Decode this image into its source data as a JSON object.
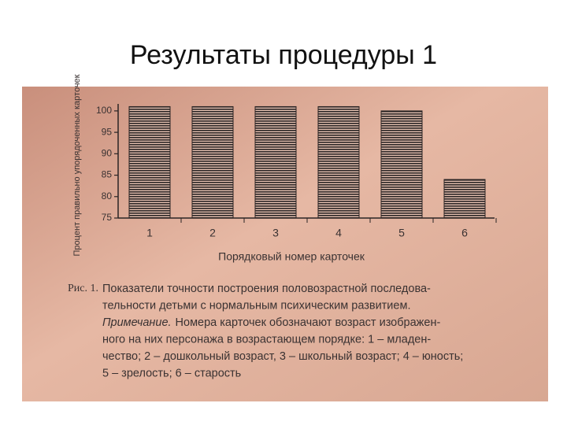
{
  "slide_title": "Результаты процедуры 1",
  "chart_data": {
    "type": "bar",
    "y_label": "Процент правильно упорядоченных карточек",
    "x_label": "Порядковый номер карточек",
    "categories": [
      "1",
      "2",
      "3",
      "4",
      "5",
      "6"
    ],
    "values": [
      101,
      101,
      101,
      101,
      100,
      84
    ],
    "color": "#2a2424",
    "ylim": [
      75,
      102
    ],
    "yticks": [
      75,
      80,
      85,
      90,
      95,
      100
    ]
  },
  "caption": {
    "label": "Рис. 1.",
    "note_label": "Примечание.",
    "lines": [
      "Показатели точности построения половозрастной последова-",
      "тельности детьми с нормальным психическим развитием.",
      "Номера карточек обозначают возраст изображен-",
      "ного на них персонажа в возрастающем порядке: 1 – младен-",
      "чество; 2 – дошкольный возраст, 3 – школьный возраст; 4 – юность;",
      "5 – зрелость; 6 – старость"
    ]
  }
}
